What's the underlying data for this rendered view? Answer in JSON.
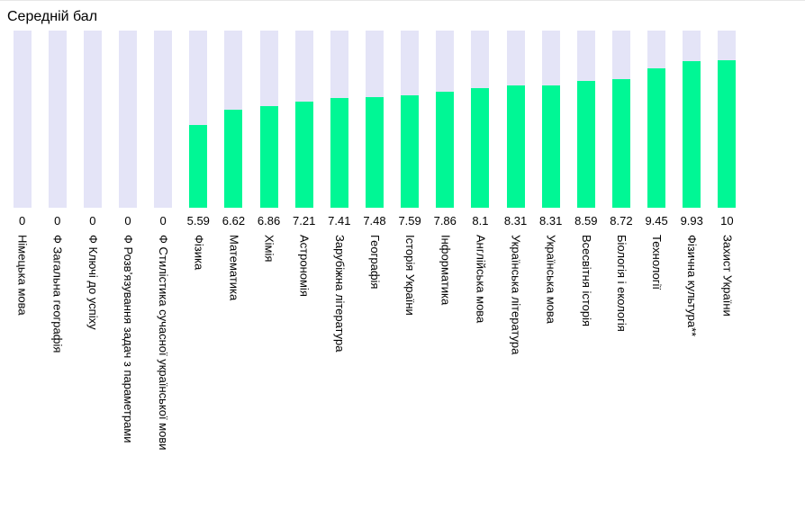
{
  "colors": {
    "bar_fill": "#00F795",
    "bar_bg": "#E4E4F7",
    "text": "#000000"
  },
  "chart_data": {
    "type": "bar",
    "title": "Середній бал",
    "categories": [
      "Німецька мова",
      "Ф Загальна географія",
      "Ф Ключі до успіху",
      "Ф Розв’язування задач з параметрами",
      "Ф Стилістика сучасної української мови",
      "Фізика",
      "Математика",
      "Хімія",
      "Астрономія",
      "Зарубіжна література",
      "Географія",
      "Історія України",
      "Інформатика",
      "Англійська мова",
      "Українська література",
      "Українська мова",
      "Всесвітня історія",
      "Біологія і екологія",
      "Технології",
      "Фізична культура**",
      "Захист України"
    ],
    "values": [
      0,
      0,
      0,
      0,
      0,
      5.59,
      6.62,
      6.86,
      7.21,
      7.41,
      7.48,
      7.59,
      7.86,
      8.1,
      8.31,
      8.31,
      8.59,
      8.72,
      9.45,
      9.93,
      10
    ],
    "value_labels": [
      "0",
      "0",
      "0",
      "0",
      "0",
      "5.59",
      "6.62",
      "6.86",
      "7.21",
      "7.41",
      "7.48",
      "7.59",
      "7.86",
      "8.1",
      "8.31",
      "8.31",
      "8.59",
      "8.72",
      "9.45",
      "9.93",
      "10"
    ],
    "xlabel": "",
    "ylabel": "",
    "ylim": [
      0,
      12
    ],
    "grid": false,
    "legend": false,
    "value_label_position": "below-bar",
    "category_label_rotation": 90
  }
}
